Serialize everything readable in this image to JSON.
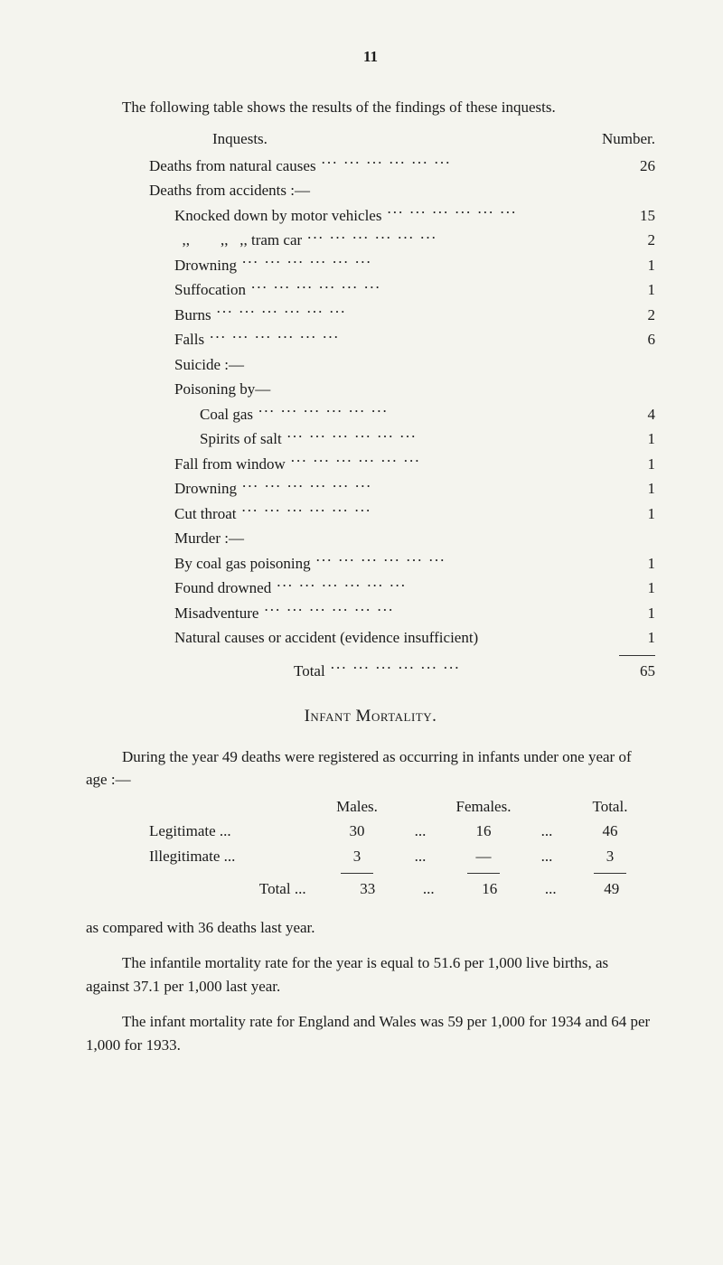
{
  "page_number": "11",
  "intro_para": "The following table shows the results of the findings of these inquests.",
  "inquests": {
    "col_label": "Inquests.",
    "col_number": "Number.",
    "rows": [
      {
        "label": "Deaths from natural causes",
        "num": "26",
        "indent": 0
      },
      {
        "label": "Deaths from accidents :—",
        "num": "",
        "indent": 0,
        "nodots": true
      },
      {
        "label": "Knocked down by motor vehicles",
        "num": "15",
        "indent": 1
      },
      {
        "label": "  ,,        ,,   ,, tram car",
        "num": "2",
        "indent": 1
      },
      {
        "label": "Drowning",
        "num": "1",
        "indent": 1
      },
      {
        "label": "Suffocation",
        "num": "1",
        "indent": 1
      },
      {
        "label": "Burns",
        "num": "2",
        "indent": 1
      },
      {
        "label": "Falls",
        "num": "6",
        "indent": 1
      },
      {
        "label": "Suicide :—",
        "num": "",
        "indent": 1,
        "nodots": true
      },
      {
        "label": "Poisoning by—",
        "num": "",
        "indent": 1,
        "nodots": true
      },
      {
        "label": "Coal gas",
        "num": "4",
        "indent": 2
      },
      {
        "label": "Spirits of salt",
        "num": "1",
        "indent": 2
      },
      {
        "label": "Fall from window",
        "num": "1",
        "indent": 1
      },
      {
        "label": "Drowning",
        "num": "1",
        "indent": 1
      },
      {
        "label": "Cut throat",
        "num": "1",
        "indent": 1
      },
      {
        "label": "Murder :—",
        "num": "",
        "indent": 1,
        "nodots": true
      },
      {
        "label": "By coal gas poisoning",
        "num": "1",
        "indent": 1
      },
      {
        "label": "Found drowned",
        "num": "1",
        "indent": 1
      },
      {
        "label": "Misadventure",
        "num": "1",
        "indent": 1
      },
      {
        "label": "Natural causes or accident (evidence insufficient)",
        "num": "1",
        "indent": 1,
        "nodots_short": true
      }
    ],
    "total_label": "Total",
    "total_num": "65"
  },
  "infant_heading": "Infant Mortality.",
  "infant_intro": "During the year 49 deaths were registered as occurring in infants under one year of age :—",
  "infant_table": {
    "cols": [
      "Males.",
      "Females.",
      "Total."
    ],
    "rows": [
      {
        "label": "Legitimate",
        "m": "30",
        "f": "16",
        "t": "46"
      },
      {
        "label": "Illegitimate",
        "m": "3",
        "f": "—",
        "t": "3"
      }
    ],
    "total_label": "Total ...",
    "total": {
      "m": "33",
      "f": "16",
      "t": "49"
    }
  },
  "compared_line": "as compared with 36 deaths last year.",
  "para2": "The infantile mortality rate for the year is equal to 51.6 per 1,000 live births, as against 37.1 per 1,000 last year.",
  "para3": "The infant mortality rate for England and Wales was 59 per 1,000 for 1934 and 64 per 1,000 for 1933."
}
